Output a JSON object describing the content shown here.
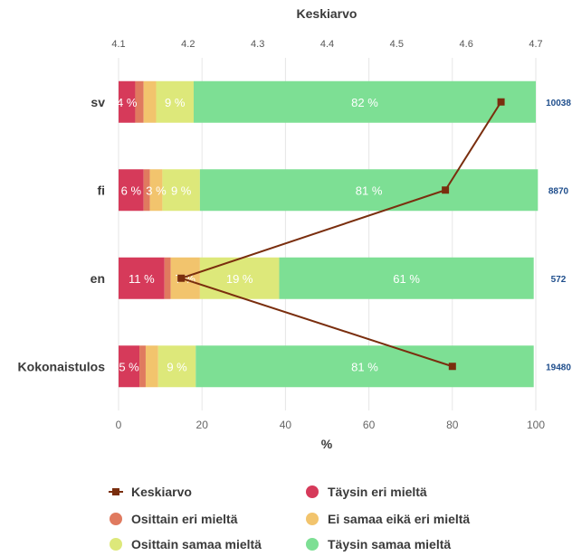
{
  "chart_data": {
    "type": "bar",
    "stacked": true,
    "orientation": "horizontal",
    "categories": [
      "sv",
      "fi",
      "en",
      "Kokonaistulos"
    ],
    "xlabel": "%",
    "xlim": [
      0,
      100
    ],
    "x_ticks": [
      "0",
      "20",
      "40",
      "60",
      "80",
      "100"
    ],
    "top_axis": {
      "title": "Keskiarvo",
      "lim": [
        4.1,
        4.7
      ],
      "ticks": [
        "4.1",
        "4.2",
        "4.3",
        "4.4",
        "4.5",
        "4.6",
        "4.7"
      ]
    },
    "counts": [
      "10038",
      "8870",
      "572",
      "19480"
    ],
    "series": [
      {
        "name": "Täysin eri mieltä",
        "color": "#d63a5a",
        "values": [
          4,
          6,
          11,
          5
        ],
        "labels": [
          "4 %",
          "6 %",
          "11 %",
          "5 %"
        ]
      },
      {
        "name": "Osittain eri mieltä",
        "color": "#e07a5f",
        "values": [
          2,
          1.5,
          1.5,
          1.5
        ],
        "labels": [
          "",
          "",
          "",
          ""
        ]
      },
      {
        "name": "Ei samaa eikä eri mieltä",
        "color": "#f2c46d",
        "values": [
          3,
          3,
          7,
          3
        ],
        "labels": [
          "",
          "3 %",
          "7 %",
          ""
        ]
      },
      {
        "name": "Osittain samaa mieltä",
        "color": "#dde87a",
        "values": [
          9,
          9,
          19,
          9
        ],
        "labels": [
          "9 %",
          "9 %",
          "19 %",
          "9 %"
        ]
      },
      {
        "name": "Täysin samaa mieltä",
        "color": "#7ddf94",
        "values": [
          82,
          81,
          61,
          81
        ],
        "labels": [
          "82 %",
          "81 %",
          "61 %",
          "81 %"
        ]
      }
    ],
    "line_series": {
      "name": "Keskiarvo",
      "color": "#7a2e0e",
      "values": [
        4.65,
        4.57,
        4.19,
        4.58
      ]
    },
    "legend_position": "bottom",
    "grid": true
  }
}
